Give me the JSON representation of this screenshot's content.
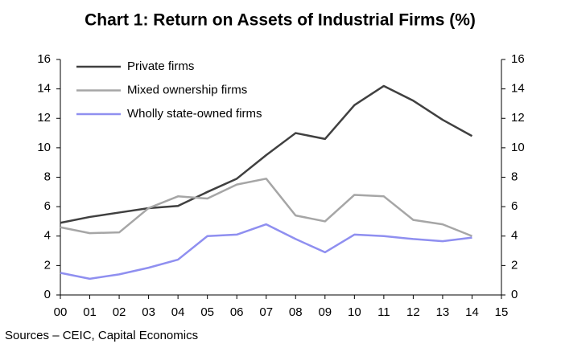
{
  "chart_data": {
    "type": "line",
    "title": "Chart 1: Return on Assets of Industrial Firms (%)",
    "source": "Sources – CEIC, Capital Economics",
    "categories": [
      "00",
      "01",
      "02",
      "03",
      "04",
      "05",
      "06",
      "07",
      "08",
      "09",
      "10",
      "11",
      "12",
      "13",
      "14",
      "15"
    ],
    "series": [
      {
        "name": "Private firms",
        "color": "#404040",
        "values": [
          4.9,
          5.3,
          5.6,
          5.9,
          6.05,
          7.0,
          7.9,
          9.5,
          11.0,
          10.6,
          12.9,
          14.2,
          13.2,
          11.9,
          10.8,
          null
        ]
      },
      {
        "name": "Mixed ownership firms",
        "color": "#a6a6a6",
        "values": [
          4.6,
          4.2,
          4.25,
          5.9,
          6.7,
          6.55,
          7.5,
          7.9,
          5.4,
          5.0,
          6.8,
          6.7,
          5.1,
          4.8,
          4.0,
          null
        ]
      },
      {
        "name": "Wholly state-owned firms",
        "color": "#8f8ff0",
        "values": [
          1.5,
          1.1,
          1.4,
          1.85,
          2.4,
          4.0,
          4.1,
          4.8,
          3.8,
          2.9,
          4.1,
          4.0,
          3.8,
          3.65,
          3.9,
          null
        ]
      }
    ],
    "ylim": [
      0,
      16
    ],
    "yticks": [
      0,
      2,
      4,
      6,
      8,
      10,
      12,
      14,
      16
    ],
    "y2lim": [
      0,
      16
    ],
    "y2ticks": [
      0,
      2,
      4,
      6,
      8,
      10,
      12,
      14,
      16
    ],
    "grid": false,
    "legend": "upper left"
  }
}
